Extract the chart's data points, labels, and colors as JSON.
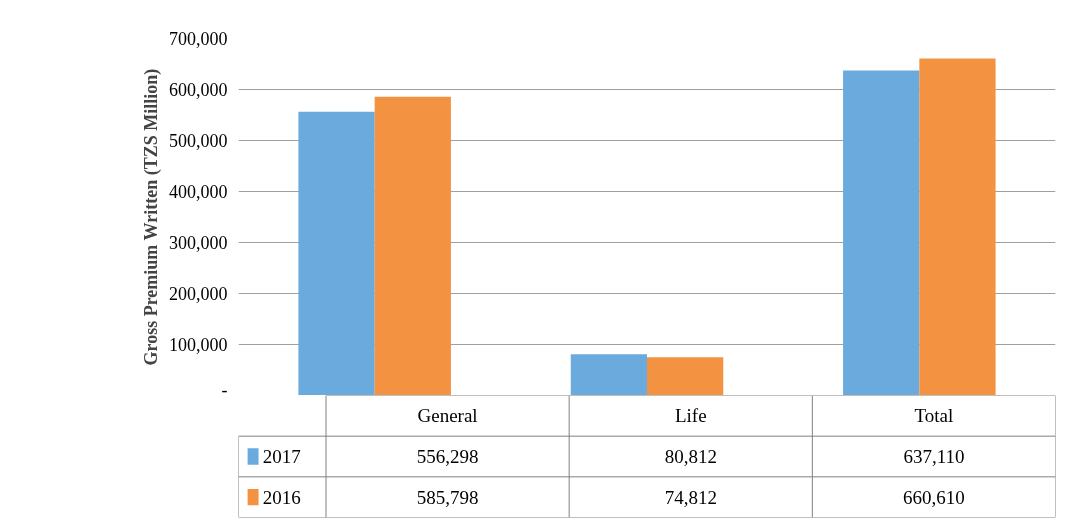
{
  "chart_data": {
    "type": "bar",
    "ylabel": "Gross Premium Written (TZS Million)",
    "categories": [
      "General",
      "Life",
      "Total"
    ],
    "series": [
      {
        "name": "2017",
        "color": "#6aaadc",
        "values": [
          556298,
          80812,
          637110
        ],
        "value_labels": [
          "556,298",
          "80,812",
          "637,110"
        ]
      },
      {
        "name": "2016",
        "color": "#f39240",
        "values": [
          585798,
          74812,
          660610
        ],
        "value_labels": [
          "585,798",
          "74,812",
          "660,610"
        ]
      }
    ],
    "ylim": [
      0,
      700000
    ],
    "yticks": [
      {
        "value": 0,
        "label": "-"
      },
      {
        "value": 100000,
        "label": "100,000"
      },
      {
        "value": 200000,
        "label": "200,000"
      },
      {
        "value": 300000,
        "label": "300,000"
      },
      {
        "value": 400000,
        "label": "400,000"
      },
      {
        "value": 500000,
        "label": "500,000"
      },
      {
        "value": 600000,
        "label": "600,000"
      },
      {
        "value": 700000,
        "label": "700,000"
      }
    ],
    "grid": "y",
    "legend": "bottom"
  }
}
